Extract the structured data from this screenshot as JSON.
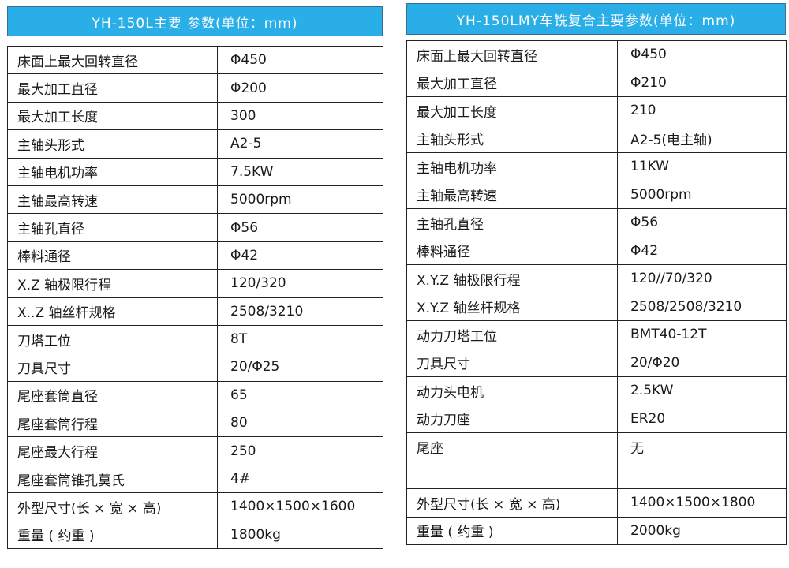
{
  "left": {
    "title": "YH-150L主要 参数(单位：mm)",
    "rows": [
      {
        "label": "床面上最大回转直径",
        "value": "Φ450"
      },
      {
        "label": "最大加工直径",
        "value": "Φ200"
      },
      {
        "label": "最大加工长度",
        "value": "300"
      },
      {
        "label": "主轴头形式",
        "value": "A2-5"
      },
      {
        "label": "主轴电机功率",
        "value": "7.5KW"
      },
      {
        "label": "主轴最高转速",
        "value": "5000rpm"
      },
      {
        "label": "主轴孔直径",
        "value": "Φ56"
      },
      {
        "label": "棒料通径",
        "value": "Φ42"
      },
      {
        "label": "X.Z 轴极限行程",
        "value": "120/320"
      },
      {
        "label": "X..Z 轴丝杆规格",
        "value": "2508/3210"
      },
      {
        "label": "刀塔工位",
        "value": "8T"
      },
      {
        "label": "刀具尺寸",
        "value": "20/Φ25"
      },
      {
        "label": "尾座套筒直径",
        "value": "65"
      },
      {
        "label": "尾座套筒行程",
        "value": "80"
      },
      {
        "label": "尾座最大行程",
        "value": "250"
      },
      {
        "label": "尾座套筒锥孔莫氏",
        "value": "4#"
      },
      {
        "label": "外型尺寸(长 × 宽 × 高)",
        "value": "1400×1500×1600"
      },
      {
        "label": "重量 ( 约重 )",
        "value": "1800kg"
      }
    ]
  },
  "right": {
    "title": "YH-150LMY车铣复合主要参数(单位：mm)",
    "rows": [
      {
        "label": "床面上最大回转直径",
        "value": "Φ450"
      },
      {
        "label": "最大加工直径",
        "value": "Φ210"
      },
      {
        "label": "最大加工长度",
        "value": "210"
      },
      {
        "label": "主轴头形式",
        "value": "A2-5(电主轴)"
      },
      {
        "label": "主轴电机功率",
        "value": "11KW"
      },
      {
        "label": "主轴最高转速",
        "value": "5000rpm"
      },
      {
        "label": "主轴孔直径",
        "value": "Φ56"
      },
      {
        "label": "棒料通径",
        "value": "Φ42"
      },
      {
        "label": "X.Y.Z 轴极限行程",
        "value": "120//70/320"
      },
      {
        "label": "X.Y.Z 轴丝杆规格",
        "value": "2508/2508/3210"
      },
      {
        "label": "动力刀塔工位",
        "value": "BMT40-12T"
      },
      {
        "label": "刀具尺寸",
        "value": "20/Φ20"
      },
      {
        "label": "动力头电机",
        "value": "2.5KW"
      },
      {
        "label": "动力刀座",
        "value": "ER20"
      },
      {
        "label": "尾座",
        "value": "无"
      },
      {
        "label": "",
        "value": ""
      },
      {
        "label": "外型尺寸(长 × 宽 × 高)",
        "value": "1400×1500×1800"
      },
      {
        "label": "重量 ( 约重 )",
        "value": "2000kg"
      }
    ]
  }
}
